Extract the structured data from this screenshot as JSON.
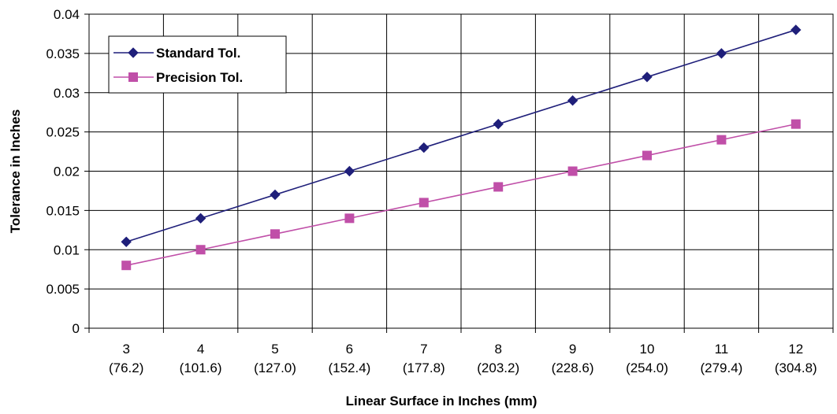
{
  "chart_data": {
    "type": "line",
    "title": "",
    "xlabel": "Linear Surface in Inches (mm)",
    "ylabel": "Tolerance in Inches",
    "categories": [
      "3",
      "4",
      "5",
      "6",
      "7",
      "8",
      "9",
      "10",
      "11",
      "12"
    ],
    "category_sublabels": [
      "(76.2)",
      "(101.6)",
      "(127.0)",
      "(152.4)",
      "(177.8)",
      "(203.2)",
      "(228.6)",
      "(254.0)",
      "(279.4)",
      "(304.8)"
    ],
    "ylim": [
      0,
      0.04
    ],
    "yticks": [
      "0",
      "0.005",
      "0.01",
      "0.015",
      "0.02",
      "0.025",
      "0.03",
      "0.035",
      "0.04"
    ],
    "grid": true,
    "legend_position": "top-left",
    "series": [
      {
        "name": "Standard Tol.",
        "color": "#1F1F7A",
        "marker": "diamond",
        "values": [
          0.011,
          0.014,
          0.017,
          0.02,
          0.023,
          0.026,
          0.029,
          0.032,
          0.035,
          0.038
        ]
      },
      {
        "name": "Precision Tol.",
        "color": "#C04FA8",
        "marker": "square",
        "values": [
          0.008,
          0.01,
          0.012,
          0.014,
          0.016,
          0.018,
          0.02,
          0.022,
          0.024,
          0.026
        ]
      }
    ]
  }
}
